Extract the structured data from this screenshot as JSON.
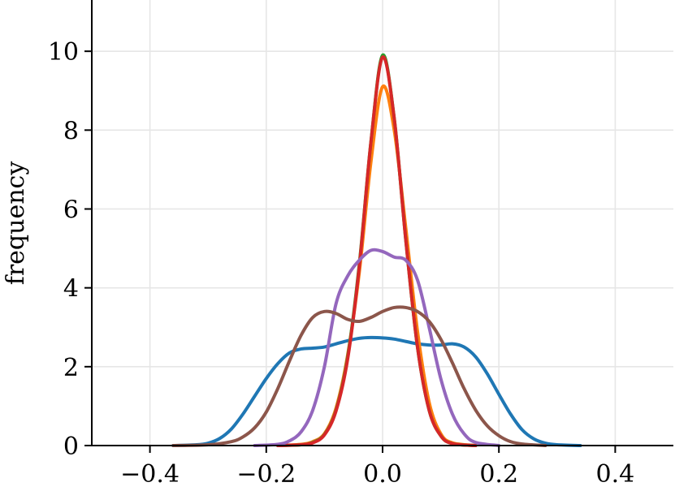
{
  "chart_data": {
    "type": "line",
    "title": "",
    "xlabel": "",
    "ylabel": "frequency",
    "xlim": [
      -0.5,
      0.5
    ],
    "ylim": [
      0,
      11.3
    ],
    "xticks": [
      -0.4,
      -0.2,
      0.0,
      0.2,
      0.4
    ],
    "yticks": [
      0,
      2,
      4,
      6,
      8,
      10
    ],
    "xtick_labels": [
      "−0.4",
      "−0.2",
      "0.0",
      "0.2",
      "0.4"
    ],
    "ytick_labels": [
      "0",
      "2",
      "4",
      "6",
      "8",
      "10"
    ],
    "grid": true,
    "legend": "none",
    "series": [
      {
        "color": "#1f77b4",
        "x": [
          -0.36,
          -0.32,
          -0.3,
          -0.28,
          -0.26,
          -0.24,
          -0.22,
          -0.2,
          -0.18,
          -0.16,
          -0.14,
          -0.12,
          -0.1,
          -0.08,
          -0.06,
          -0.04,
          -0.02,
          0.0,
          0.02,
          0.04,
          0.06,
          0.08,
          0.1,
          0.12,
          0.14,
          0.16,
          0.18,
          0.2,
          0.22,
          0.24,
          0.26,
          0.28,
          0.3,
          0.34
        ],
        "values": [
          0.0,
          0.02,
          0.06,
          0.18,
          0.42,
          0.8,
          1.25,
          1.7,
          2.08,
          2.35,
          2.45,
          2.47,
          2.5,
          2.58,
          2.66,
          2.72,
          2.74,
          2.73,
          2.7,
          2.64,
          2.58,
          2.55,
          2.55,
          2.58,
          2.5,
          2.25,
          1.82,
          1.3,
          0.8,
          0.4,
          0.17,
          0.06,
          0.02,
          0.0
        ]
      },
      {
        "color": "#ff7f0e",
        "x": [
          -0.18,
          -0.14,
          -0.12,
          -0.1,
          -0.08,
          -0.06,
          -0.04,
          -0.02,
          0.0,
          0.02,
          0.04,
          0.06,
          0.08,
          0.1,
          0.12,
          0.16
        ],
        "values": [
          0.0,
          0.03,
          0.1,
          0.3,
          0.95,
          2.3,
          4.4,
          7.2,
          9.1,
          8.0,
          5.5,
          2.9,
          1.1,
          0.3,
          0.07,
          0.0
        ]
      },
      {
        "color": "#2ca02c",
        "x": [
          -0.18,
          -0.14,
          -0.12,
          -0.1,
          -0.08,
          -0.06,
          -0.04,
          -0.02,
          0.0,
          0.02,
          0.04,
          0.06,
          0.08,
          0.1,
          0.12,
          0.16
        ],
        "values": [
          0.0,
          0.02,
          0.08,
          0.28,
          0.9,
          2.25,
          4.6,
          7.7,
          9.9,
          8.3,
          5.2,
          2.5,
          0.9,
          0.25,
          0.05,
          0.0
        ]
      },
      {
        "color": "#d62728",
        "x": [
          -0.18,
          -0.14,
          -0.12,
          -0.1,
          -0.08,
          -0.06,
          -0.04,
          -0.02,
          0.0,
          0.02,
          0.04,
          0.06,
          0.08,
          0.1,
          0.12,
          0.16
        ],
        "values": [
          0.0,
          0.02,
          0.07,
          0.27,
          0.88,
          2.2,
          4.55,
          7.7,
          9.85,
          8.3,
          5.2,
          2.5,
          0.9,
          0.25,
          0.05,
          0.0
        ]
      },
      {
        "color": "#9467bd",
        "x": [
          -0.22,
          -0.18,
          -0.16,
          -0.14,
          -0.12,
          -0.1,
          -0.08,
          -0.06,
          -0.04,
          -0.02,
          0.0,
          0.02,
          0.04,
          0.06,
          0.08,
          0.1,
          0.12,
          0.14,
          0.16,
          0.2
        ],
        "values": [
          0.0,
          0.03,
          0.12,
          0.35,
          0.9,
          2.0,
          3.6,
          4.3,
          4.7,
          4.95,
          4.92,
          4.78,
          4.7,
          4.2,
          3.0,
          1.7,
          0.8,
          0.3,
          0.08,
          0.0
        ]
      },
      {
        "color": "#8c564b",
        "x": [
          -0.36,
          -0.3,
          -0.26,
          -0.24,
          -0.22,
          -0.2,
          -0.18,
          -0.16,
          -0.14,
          -0.12,
          -0.1,
          -0.08,
          -0.06,
          -0.04,
          -0.02,
          0.0,
          0.02,
          0.04,
          0.06,
          0.08,
          0.1,
          0.12,
          0.14,
          0.16,
          0.18,
          0.2,
          0.22,
          0.24,
          0.28
        ],
        "values": [
          0.0,
          0.02,
          0.1,
          0.22,
          0.45,
          0.85,
          1.45,
          2.15,
          2.8,
          3.25,
          3.4,
          3.35,
          3.2,
          3.15,
          3.25,
          3.4,
          3.5,
          3.5,
          3.4,
          3.15,
          2.7,
          2.1,
          1.45,
          0.9,
          0.5,
          0.25,
          0.1,
          0.04,
          0.0
        ]
      }
    ]
  }
}
